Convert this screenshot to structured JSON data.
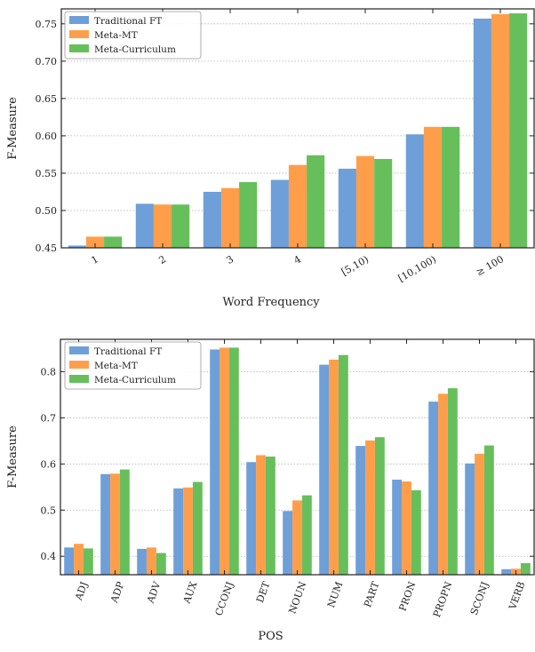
{
  "series_colors": [
    "#6f9fd8",
    "#ff9e4a",
    "#67bf5c"
  ],
  "chart_data": [
    {
      "type": "bar",
      "title": "",
      "xlabel": "Word Frequency",
      "ylabel": "F-Measure",
      "ylim": [
        0.45,
        0.77
      ],
      "yticks": [
        0.45,
        0.5,
        0.55,
        0.6,
        0.65,
        0.7,
        0.75
      ],
      "ytick_labels": [
        "0.45",
        "0.50",
        "0.55",
        "0.60",
        "0.65",
        "0.70",
        "0.75"
      ],
      "grid": "horizontal dotted",
      "legend": "top-left",
      "categories": [
        "1",
        "2",
        "3",
        "4",
        "[5,10)",
        "[10,100)",
        "≥ 100"
      ],
      "series": [
        {
          "name": "Traditional FT",
          "values": [
            0.453,
            0.509,
            0.525,
            0.541,
            0.556,
            0.602,
            0.757
          ]
        },
        {
          "name": "Meta-MT",
          "values": [
            0.465,
            0.508,
            0.53,
            0.561,
            0.573,
            0.612,
            0.763
          ]
        },
        {
          "name": "Meta-Curriculum",
          "values": [
            0.465,
            0.508,
            0.538,
            0.574,
            0.569,
            0.612,
            0.764
          ]
        }
      ]
    },
    {
      "type": "bar",
      "title": "",
      "xlabel": "POS",
      "ylabel": "F-Measure",
      "ylim": [
        0.36,
        0.87
      ],
      "yticks": [
        0.4,
        0.5,
        0.6,
        0.7,
        0.8
      ],
      "ytick_labels": [
        "0.4",
        "0.5",
        "0.6",
        "0.7",
        "0.8"
      ],
      "grid": "horizontal dotted",
      "legend": "top-left",
      "categories": [
        "ADJ",
        "ADP",
        "ADV",
        "AUX",
        "CCONJ",
        "DET",
        "NOUN",
        "NUM",
        "PART",
        "PRON",
        "PROPN",
        "SCONJ",
        "VERB"
      ],
      "series": [
        {
          "name": "Traditional FT",
          "values": [
            0.419,
            0.578,
            0.416,
            0.547,
            0.848,
            0.604,
            0.498,
            0.815,
            0.639,
            0.566,
            0.735,
            0.601,
            0.372
          ]
        },
        {
          "name": "Meta-MT",
          "values": [
            0.427,
            0.579,
            0.419,
            0.549,
            0.852,
            0.619,
            0.521,
            0.826,
            0.651,
            0.562,
            0.752,
            0.622,
            0.373
          ]
        },
        {
          "name": "Meta-Curriculum",
          "values": [
            0.417,
            0.588,
            0.407,
            0.561,
            0.852,
            0.616,
            0.532,
            0.836,
            0.658,
            0.543,
            0.764,
            0.64,
            0.385
          ]
        }
      ]
    }
  ]
}
